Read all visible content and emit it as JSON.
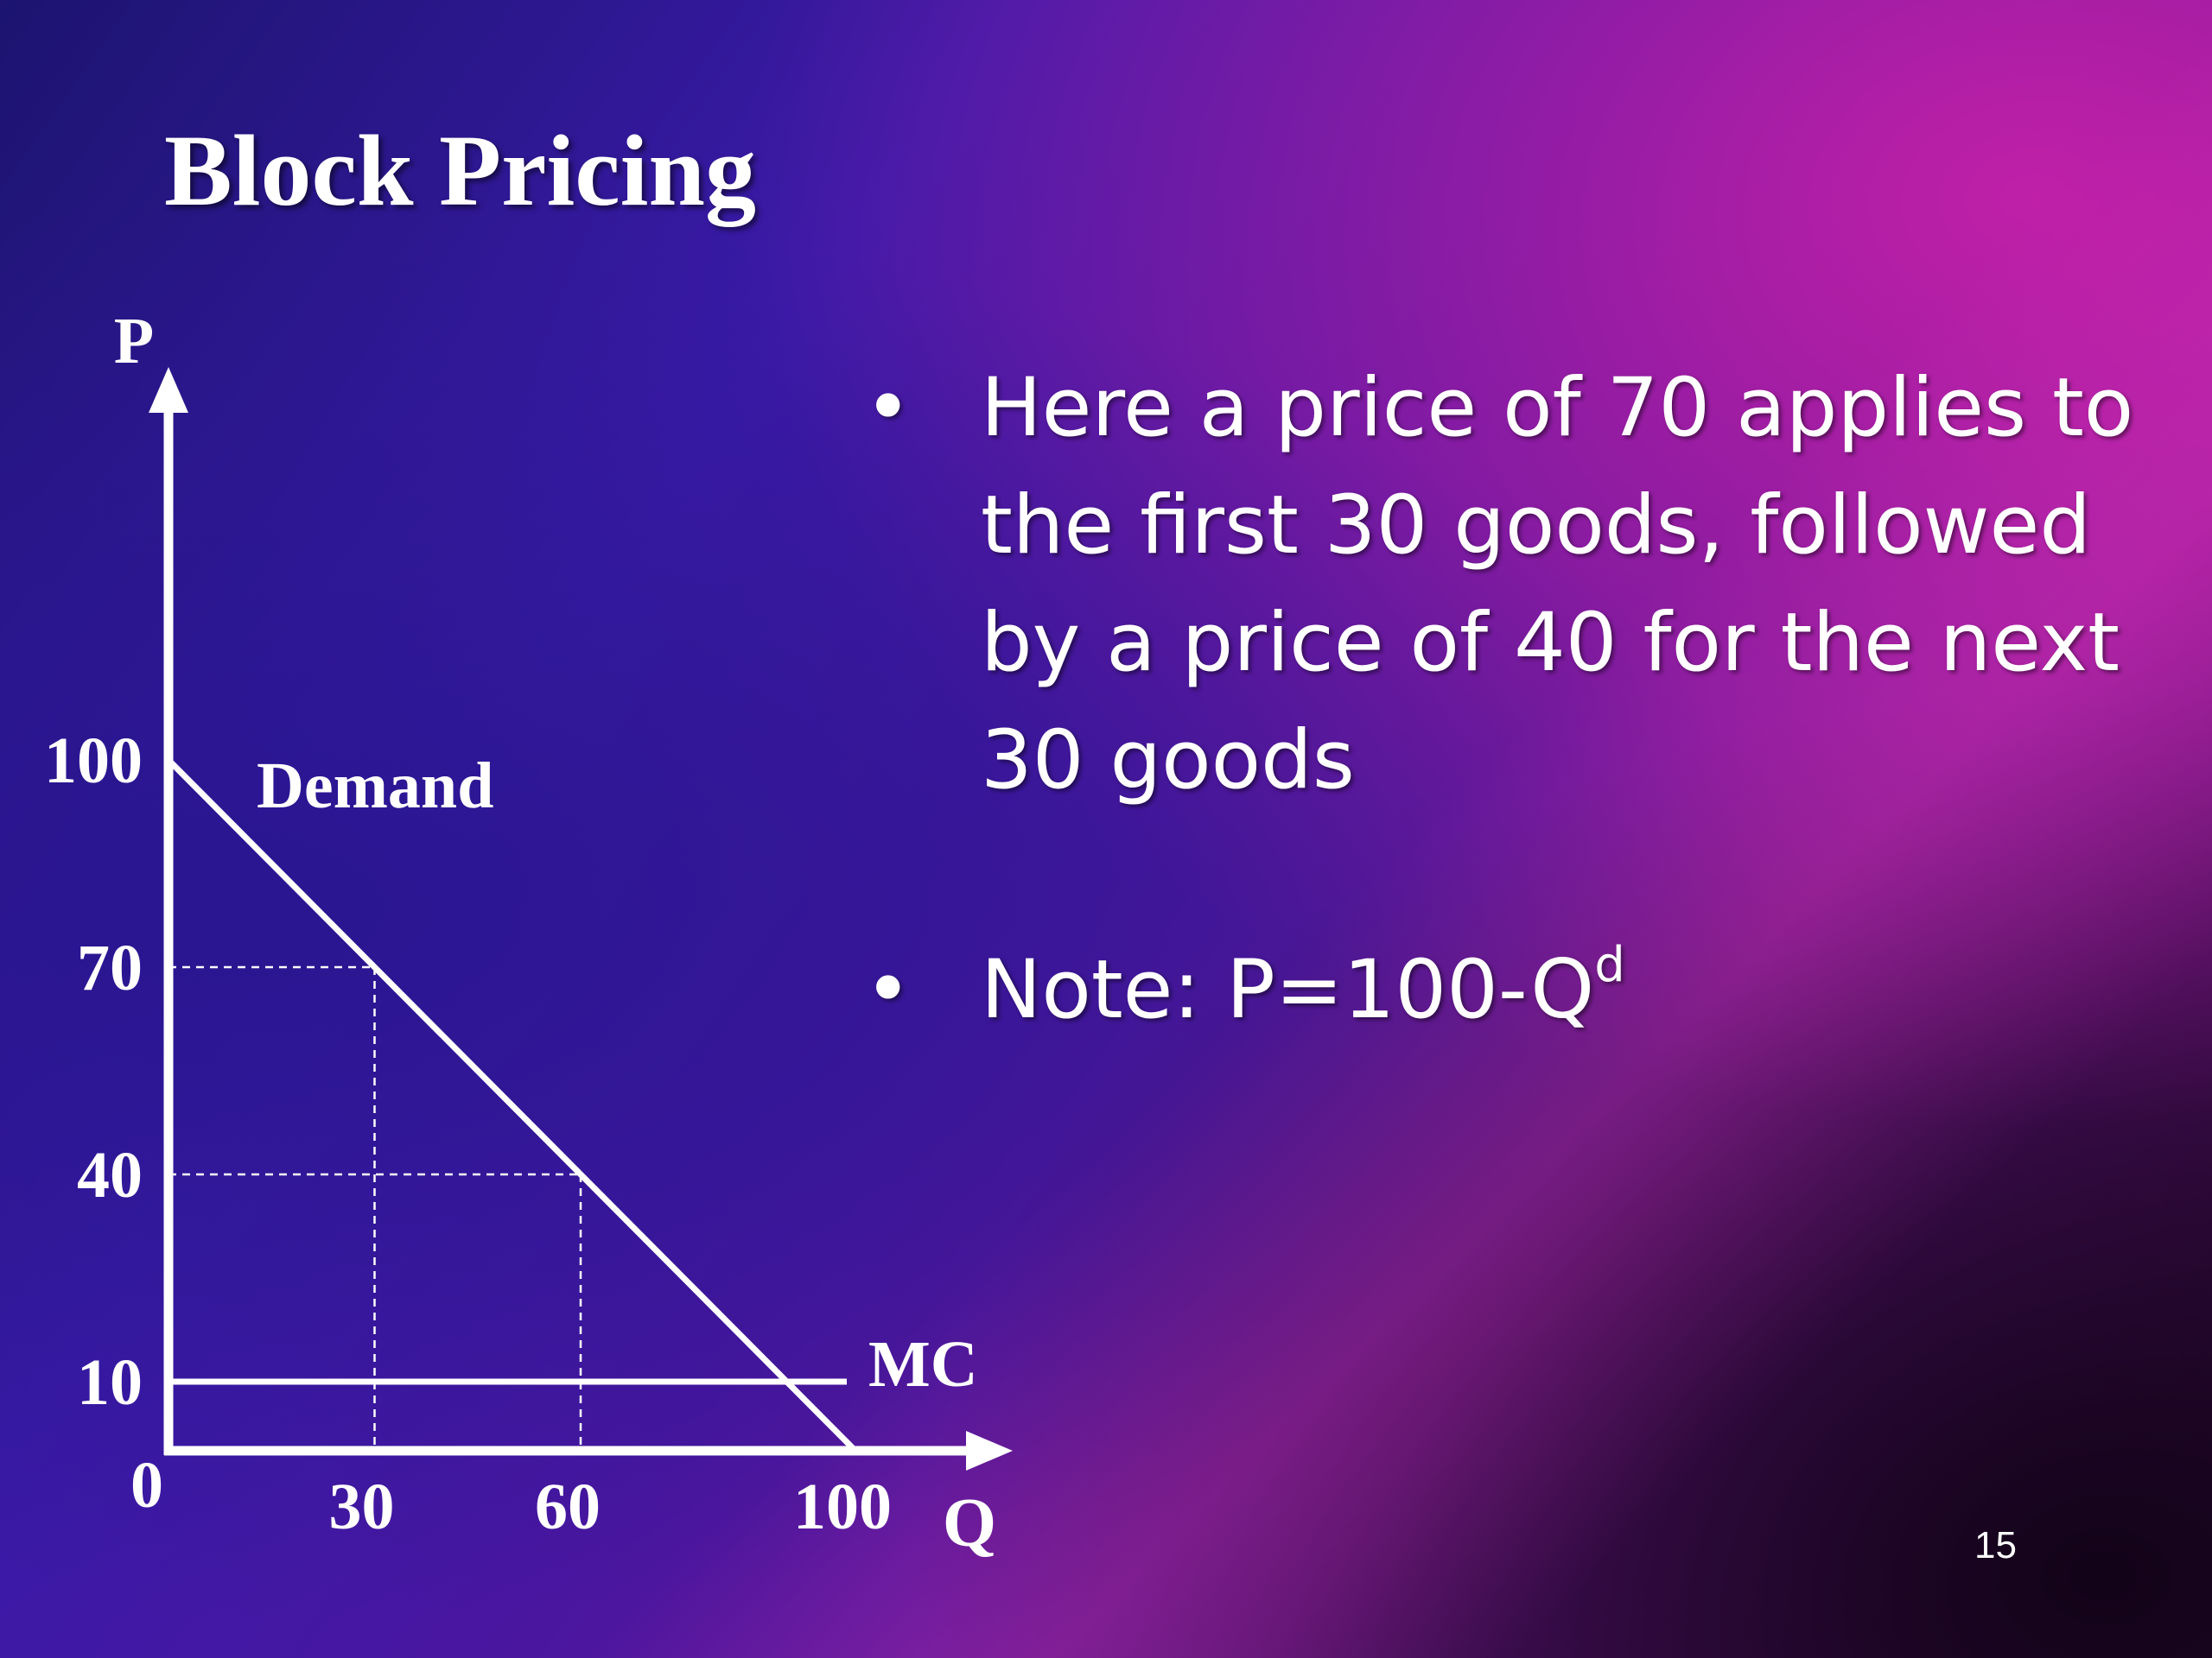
{
  "slide": {
    "title": "Block Pricing",
    "page_number": "15",
    "bullets": [
      {
        "text": "Here a price of 70 applies to the first 30 goods, followed by a price of 40 for the next 30 goods"
      },
      {
        "text": "Note: P=100-Q",
        "superscript": "d"
      }
    ]
  },
  "chart_data": {
    "type": "line",
    "ylabel": "P",
    "xlabel": "Q",
    "xlim": [
      0,
      100
    ],
    "ylim": [
      0,
      100
    ],
    "origin_label": "0",
    "x_ticks": [
      "30",
      "60",
      "100"
    ],
    "y_ticks": [
      "100",
      "70",
      "40",
      "10"
    ],
    "series": [
      {
        "name": "Demand",
        "x": [
          0,
          100
        ],
        "y": [
          100,
          0
        ]
      },
      {
        "name": "MC",
        "x": [
          0,
          100
        ],
        "y": [
          10,
          10
        ]
      }
    ],
    "guides": [
      {
        "x": 30,
        "y": 70
      },
      {
        "x": 60,
        "y": 40
      }
    ]
  }
}
